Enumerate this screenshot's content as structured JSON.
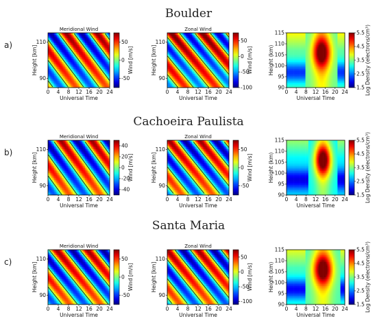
{
  "chart_data": [
    {
      "id": "boulder",
      "row_label": "a)",
      "site": "Boulder",
      "panels": [
        {
          "type": "heatmap",
          "title": "Meridional Wind",
          "xlabel": "Universal Time",
          "ylabel": "Height [km]",
          "xlim": [
            0,
            24
          ],
          "ylim": [
            85,
            115
          ],
          "xticks": [
            0,
            4,
            8,
            12,
            16,
            20,
            24
          ],
          "yticks": [
            90,
            110
          ],
          "cbar_label": "Wind [m/s]",
          "cbar_range": [
            -75,
            75
          ],
          "cbar_ticks": [
            50,
            0,
            -50
          ],
          "cmap": "jet",
          "field": {
            "amp": 1.0,
            "offset": 0.05,
            "phase": 0.0,
            "tilt": 1.0,
            "k": 0.28
          }
        },
        {
          "type": "heatmap",
          "title": "Zonal Wind",
          "xlabel": "Universal Time",
          "ylabel": "Height [km]",
          "xlim": [
            0,
            24
          ],
          "ylim": [
            85,
            115
          ],
          "xticks": [
            0,
            4,
            8,
            12,
            16,
            20,
            24
          ],
          "yticks": [
            90,
            110
          ],
          "cbar_label": "Wind [m/s]",
          "cbar_range": [
            -100,
            75
          ],
          "cbar_ticks": [
            50,
            0,
            -50,
            -100
          ],
          "cmap": "jet",
          "field": {
            "amp": 1.0,
            "offset": 0.25,
            "phase": 2.4,
            "tilt": 1.1,
            "k": 0.28
          }
        },
        {
          "type": "heatmap",
          "title": "",
          "xlabel": "Universal Time",
          "ylabel": "Height (km)",
          "xlim": [
            0,
            24
          ],
          "ylim": [
            90,
            115
          ],
          "xticks": [
            0,
            4,
            8,
            12,
            16,
            20,
            24
          ],
          "yticks": [
            90,
            95,
            100,
            105,
            110,
            115
          ],
          "cbar_label": "Log Density (electrons/cm³)",
          "cbar_range": [
            1.5,
            5.5
          ],
          "cbar_ticks": [
            5.5,
            4.5,
            3.5,
            2.5,
            1.5
          ],
          "cmap": "jet",
          "density": {
            "night_value": 2.2,
            "bg_value": 3.4,
            "peak_value": 5.4,
            "dawn": 8,
            "dusk": 21
          }
        }
      ]
    },
    {
      "id": "cachoeira",
      "row_label": "b)",
      "site": "Cachoeira Paulista",
      "panels": [
        {
          "type": "heatmap",
          "title": "Meridional Wind",
          "xlabel": "Universal Time",
          "ylabel": "Height [km]",
          "xlim": [
            0,
            24
          ],
          "ylim": [
            85,
            115
          ],
          "xticks": [
            0,
            4,
            8,
            12,
            16,
            20,
            24
          ],
          "yticks": [
            90,
            110
          ],
          "cbar_label": "Wind [m/s]",
          "cbar_range": [
            -50,
            50
          ],
          "cbar_ticks": [
            40,
            20,
            0,
            -20,
            -40
          ],
          "cmap": "jet",
          "field": {
            "amp": 1.0,
            "offset": 0.0,
            "phase": 1.2,
            "tilt": 0.9,
            "k": 0.3
          }
        },
        {
          "type": "heatmap",
          "title": "Zonal Wind",
          "xlabel": "Universal Time",
          "ylabel": "Height [km]",
          "xlim": [
            0,
            24
          ],
          "ylim": [
            85,
            115
          ],
          "xticks": [
            0,
            4,
            8,
            12,
            16,
            20,
            24
          ],
          "yticks": [
            90,
            110
          ],
          "cbar_label": "Wind [m/s]",
          "cbar_range": [
            -75,
            75
          ],
          "cbar_ticks": [
            50,
            0,
            -50
          ],
          "cmap": "jet",
          "field": {
            "amp": 1.0,
            "offset": 0.0,
            "phase": 3.0,
            "tilt": 1.0,
            "k": 0.3
          }
        },
        {
          "type": "heatmap",
          "title": "",
          "xlabel": "Universal Time",
          "ylabel": "Height (km)",
          "xlim": [
            0,
            24
          ],
          "ylim": [
            90,
            115
          ],
          "xticks": [
            0,
            4,
            8,
            12,
            16,
            20,
            24
          ],
          "yticks": [
            90,
            95,
            100,
            105,
            110,
            115
          ],
          "cbar_label": "Log Density (electrons/cm³)",
          "cbar_range": [
            1.5,
            5.5
          ],
          "cbar_ticks": [
            5.5,
            4.5,
            3.5,
            2.5,
            1.5
          ],
          "cmap": "jet",
          "density": {
            "night_value": 1.9,
            "bg_value": 3.0,
            "peak_value": 5.4,
            "dawn": 9,
            "dusk": 21
          }
        }
      ]
    },
    {
      "id": "santamaria",
      "row_label": "c)",
      "site": "Santa Maria",
      "panels": [
        {
          "type": "heatmap",
          "title": "Meridional Wind",
          "xlabel": "Universal Time",
          "ylabel": "Height [km]",
          "xlim": [
            0,
            24
          ],
          "ylim": [
            85,
            115
          ],
          "xticks": [
            0,
            4,
            8,
            12,
            16,
            20,
            24
          ],
          "yticks": [
            90,
            110
          ],
          "cbar_label": "Wind [m/s]",
          "cbar_range": [
            -75,
            75
          ],
          "cbar_ticks": [
            50,
            0,
            -50
          ],
          "cmap": "jet",
          "field": {
            "amp": 1.0,
            "offset": 0.0,
            "phase": 1.6,
            "tilt": 1.0,
            "k": 0.3
          }
        },
        {
          "type": "heatmap",
          "title": "Zonal Wind",
          "xlabel": "Universal Time",
          "ylabel": "Height [km]",
          "xlim": [
            0,
            24
          ],
          "ylim": [
            85,
            115
          ],
          "xticks": [
            0,
            4,
            8,
            12,
            16,
            20,
            24
          ],
          "yticks": [
            90,
            110
          ],
          "cbar_label": "Wind [m/s]",
          "cbar_range": [
            -110,
            75
          ],
          "cbar_ticks": [
            50,
            0,
            -50,
            -100
          ],
          "cmap": "jet",
          "field": {
            "amp": 1.0,
            "offset": 0.0,
            "phase": 3.4,
            "tilt": 1.0,
            "k": 0.3
          }
        },
        {
          "type": "heatmap",
          "title": "",
          "xlabel": "Universal Time",
          "ylabel": "Height (km)",
          "xlim": [
            0,
            24
          ],
          "ylim": [
            90,
            115
          ],
          "xticks": [
            0,
            4,
            8,
            12,
            16,
            20,
            24
          ],
          "yticks": [
            90,
            95,
            100,
            105,
            110,
            115
          ],
          "cbar_label": "Log Density (electrons/cm³)",
          "cbar_range": [
            1.5,
            5.5
          ],
          "cbar_ticks": [
            5.5,
            4.5,
            3.5,
            2.5,
            1.5
          ],
          "cmap": "jet",
          "density": {
            "night_value": 2.0,
            "bg_value": 3.3,
            "peak_value": 5.4,
            "dawn": 8,
            "dusk": 22
          }
        }
      ]
    }
  ]
}
